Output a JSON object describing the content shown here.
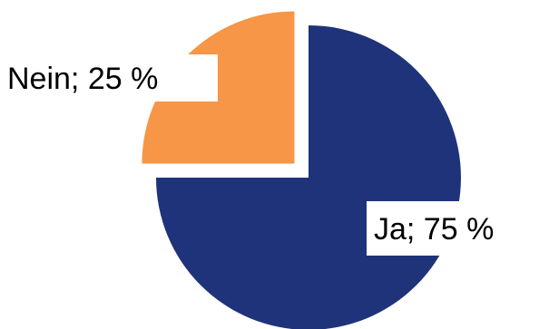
{
  "chart_data": {
    "type": "pie",
    "slices": [
      {
        "label": "Ja",
        "value": 75,
        "display": "Ja; 75 %",
        "color": "#1F337A"
      },
      {
        "label": "Nein",
        "value": 25,
        "display": "Nein; 25 %",
        "color": "#F79646"
      }
    ],
    "title": "",
    "legend": "none"
  }
}
